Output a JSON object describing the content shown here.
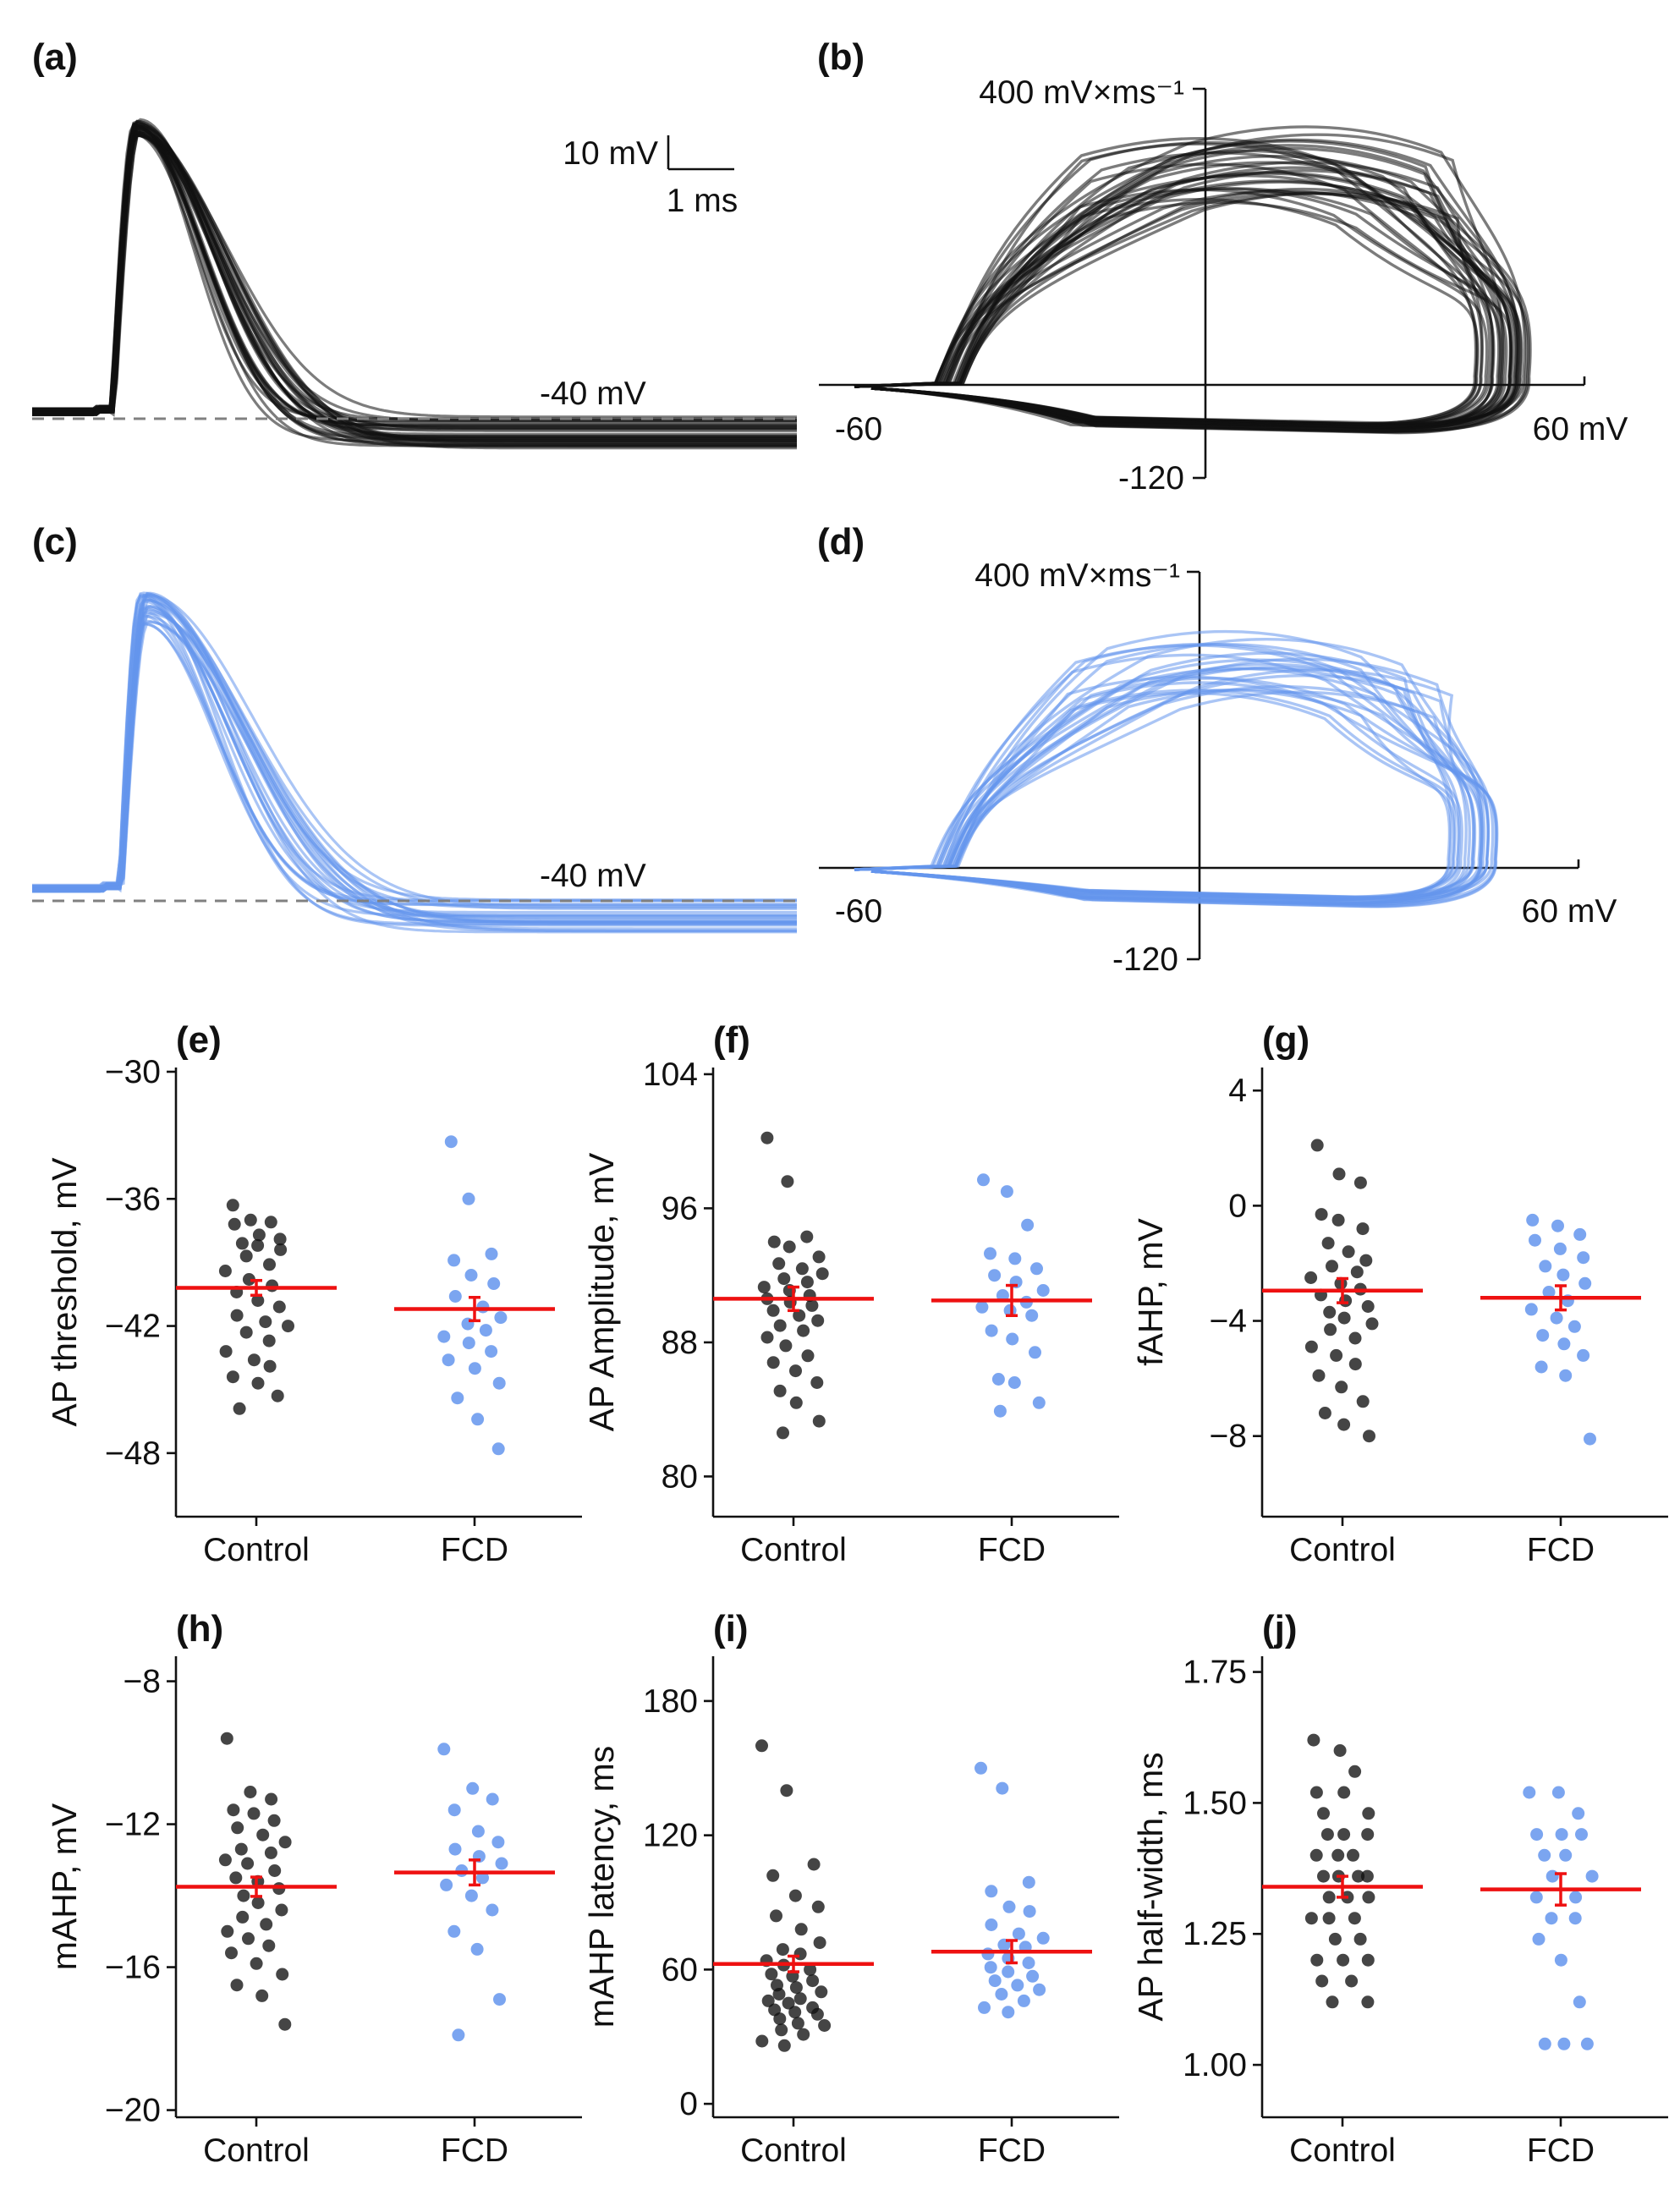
{
  "colors": {
    "control": "#111111",
    "fcd": "#6495ed",
    "mean": "#ee1111",
    "baseline": "#808080"
  },
  "waveforms": {
    "a": {
      "label": "(a)",
      "color": "#111111",
      "baseline_label": "-40 mV",
      "scalebar_v": "10 mV",
      "scalebar_t": "1 ms"
    },
    "c": {
      "label": "(c)",
      "color": "#6495ed",
      "baseline_label": "-40 mV"
    }
  },
  "phase_plots": {
    "b": {
      "label": "(b)",
      "color": "#111111",
      "y_max_label": "400 mV×ms⁻¹",
      "y_min_label": "-120",
      "x_min_label": "-60",
      "x_max_label": "60 mV"
    },
    "d": {
      "label": "(d)",
      "color": "#6495ed",
      "y_max_label": "400 mV×ms⁻¹",
      "y_min_label": "-120",
      "x_min_label": "-60",
      "x_max_label": "60 mV"
    }
  },
  "chart_data": [
    {
      "id": "e",
      "label": "(e)",
      "type": "scatter",
      "ylabel": "AP threshold, mV",
      "categories": [
        "Control",
        "FCD"
      ],
      "ylim": [
        -51,
        -29.8
      ],
      "yticks": [
        -30,
        -36,
        -42,
        -48
      ],
      "ytick_labels": [
        "−30",
        "−36",
        "−42",
        "−48"
      ],
      "series": [
        {
          "name": "Control",
          "values": [
            -36.3,
            -37,
            -37.1,
            -37.2,
            -37.7,
            -37.9,
            -38.1,
            -38.2,
            -38.4,
            -38.7,
            -39.1,
            -39.4,
            -39.8,
            -40.1,
            -40.4,
            -40.8,
            -41.1,
            -41.5,
            -41.8,
            -42,
            -42.3,
            -42.7,
            -43.2,
            -43.6,
            -43.9,
            -44.4,
            -44.7,
            -45.3,
            -45.9
          ],
          "mean": -40.2,
          "sem": 0.35
        },
        {
          "name": "FCD",
          "values": [
            -33.3,
            -36,
            -38.6,
            -38.9,
            -39.6,
            -40,
            -40.6,
            -41.1,
            -41.6,
            -41.9,
            -42.2,
            -42.5,
            -42.8,
            -43.2,
            -43.6,
            -44,
            -44.7,
            -45.4,
            -46.4,
            -47.8
          ],
          "mean": -41.2,
          "sem": 0.55
        }
      ]
    },
    {
      "id": "f",
      "label": "(f)",
      "type": "scatter",
      "ylabel": "AP Amplitude, mV",
      "categories": [
        "Control",
        "FCD"
      ],
      "ylim": [
        77.6,
        104.4
      ],
      "yticks": [
        104,
        96,
        88,
        80
      ],
      "ytick_labels": [
        "104",
        "96",
        "88",
        "80"
      ],
      "series": [
        {
          "name": "Control",
          "values": [
            100.2,
            97.6,
            94.3,
            94,
            93.7,
            93.1,
            92.7,
            92.4,
            92.1,
            91.8,
            91.6,
            91.3,
            91.1,
            90.8,
            90.6,
            90.4,
            90.2,
            89.9,
            89.6,
            89.3,
            89,
            88.7,
            88.3,
            87.8,
            87.2,
            86.8,
            86.3,
            85.6,
            85.1,
            84.4,
            83.3,
            82.6
          ],
          "mean": 90.6,
          "sem": 0.7
        },
        {
          "name": "FCD",
          "values": [
            97.7,
            97,
            95,
            93.3,
            93,
            92.4,
            92,
            91.6,
            91.1,
            90.8,
            90.4,
            90.1,
            89.9,
            89.6,
            88.7,
            88.2,
            87.4,
            85.8,
            85.6,
            84.4,
            83.9
          ],
          "mean": 90.5,
          "sem": 0.9
        }
      ]
    },
    {
      "id": "g",
      "label": "(g)",
      "type": "scatter",
      "ylabel": "fAHP, mV",
      "categories": [
        "Control",
        "FCD"
      ],
      "ylim": [
        -10.8,
        4.8
      ],
      "yticks": [
        4,
        0,
        -4,
        -8
      ],
      "ytick_labels": [
        "4",
        "0",
        "−4",
        "−8"
      ],
      "series": [
        {
          "name": "Control",
          "values": [
            2.1,
            1.1,
            0.8,
            -0.3,
            -0.5,
            -0.8,
            -1.3,
            -1.6,
            -1.9,
            -2.1,
            -2.3,
            -2.5,
            -2.7,
            -2.9,
            -3.1,
            -3.3,
            -3.5,
            -3.7,
            -3.9,
            -4.1,
            -4.3,
            -4.6,
            -4.9,
            -5.2,
            -5.5,
            -5.9,
            -6.3,
            -6.8,
            -7.2,
            -7.6,
            -8
          ],
          "mean": -2.95,
          "sem": 0.42
        },
        {
          "name": "FCD",
          "values": [
            -0.5,
            -0.7,
            -1,
            -1.2,
            -1.5,
            -1.8,
            -2.1,
            -2.4,
            -2.7,
            -3,
            -3.3,
            -3.6,
            -3.9,
            -4.2,
            -4.5,
            -4.8,
            -5.2,
            -5.6,
            -5.9,
            -8.1
          ],
          "mean": -3.2,
          "sem": 0.42
        }
      ]
    },
    {
      "id": "h",
      "label": "(h)",
      "type": "scatter",
      "ylabel": "mAHP, mV",
      "categories": [
        "Control",
        "FCD"
      ],
      "ylim": [
        -20.2,
        -7.3
      ],
      "yticks": [
        -8,
        -12,
        -16,
        -20
      ],
      "ytick_labels": [
        "−8",
        "−12",
        "−16",
        "−20"
      ],
      "series": [
        {
          "name": "Control",
          "values": [
            -9.6,
            -11.1,
            -11.3,
            -11.6,
            -11.7,
            -11.9,
            -12.1,
            -12.3,
            -12.5,
            -12.7,
            -12.8,
            -13,
            -13.1,
            -13.3,
            -13.5,
            -13.6,
            -13.8,
            -14,
            -14.2,
            -14.4,
            -14.6,
            -14.8,
            -15,
            -15.2,
            -15.4,
            -15.6,
            -15.9,
            -16.2,
            -16.5,
            -16.8,
            -17.6
          ],
          "mean": -13.75,
          "sem": 0.27
        },
        {
          "name": "FCD",
          "values": [
            -9.9,
            -11,
            -11.3,
            -11.6,
            -12.2,
            -12.5,
            -12.7,
            -12.9,
            -13.1,
            -13.3,
            -13.5,
            -13.7,
            -14,
            -14.4,
            -15,
            -15.5,
            -16.9,
            -17.9
          ],
          "mean": -13.35,
          "sem": 0.35
        }
      ]
    },
    {
      "id": "i",
      "label": "(i)",
      "type": "scatter",
      "ylabel": "mAHP latency, ms",
      "categories": [
        "Control",
        "FCD"
      ],
      "ylim": [
        -6,
        200
      ],
      "yticks": [
        180,
        120,
        60,
        0
      ],
      "ytick_labels": [
        "180",
        "120",
        "60",
        "0"
      ],
      "series": [
        {
          "name": "Control",
          "values": [
            160,
            140,
            107,
            102,
            93,
            88,
            84,
            78,
            72,
            69,
            67,
            64,
            62,
            60,
            58,
            57,
            55,
            53,
            52,
            50,
            49,
            47,
            46,
            45,
            43,
            42,
            41,
            40,
            38,
            36,
            35,
            33,
            31,
            28,
            26
          ],
          "mean": 62.5,
          "sem": 3.5
        },
        {
          "name": "FCD",
          "values": [
            150,
            141,
            99,
            95,
            88,
            86,
            80,
            76,
            74,
            71,
            70,
            67,
            65,
            63,
            61,
            59,
            57,
            55,
            53,
            51,
            49,
            46,
            43,
            41
          ],
          "mean": 68,
          "sem": 5
        }
      ]
    },
    {
      "id": "j",
      "label": "(j)",
      "type": "scatter",
      "ylabel": "AP half-width, ms",
      "categories": [
        "Control",
        "FCD"
      ],
      "ylim": [
        0.9,
        1.78
      ],
      "yticks": [
        1.75,
        1.5,
        1.25,
        1.0
      ],
      "ytick_labels": [
        "1.75",
        "1.50",
        "1.25",
        "1.00"
      ],
      "series": [
        {
          "name": "Control",
          "values": [
            1.62,
            1.6,
            1.56,
            1.52,
            1.52,
            1.48,
            1.48,
            1.44,
            1.44,
            1.44,
            1.4,
            1.4,
            1.4,
            1.36,
            1.36,
            1.36,
            1.36,
            1.32,
            1.32,
            1.32,
            1.28,
            1.28,
            1.28,
            1.24,
            1.24,
            1.2,
            1.2,
            1.2,
            1.16,
            1.16,
            1.12,
            1.12
          ],
          "mean": 1.34,
          "sem": 0.02
        },
        {
          "name": "FCD",
          "values": [
            1.52,
            1.52,
            1.48,
            1.44,
            1.44,
            1.44,
            1.4,
            1.4,
            1.36,
            1.36,
            1.32,
            1.32,
            1.28,
            1.28,
            1.24,
            1.2,
            1.12,
            1.04,
            1.04,
            1.04
          ],
          "mean": 1.335,
          "sem": 0.03
        }
      ]
    }
  ]
}
